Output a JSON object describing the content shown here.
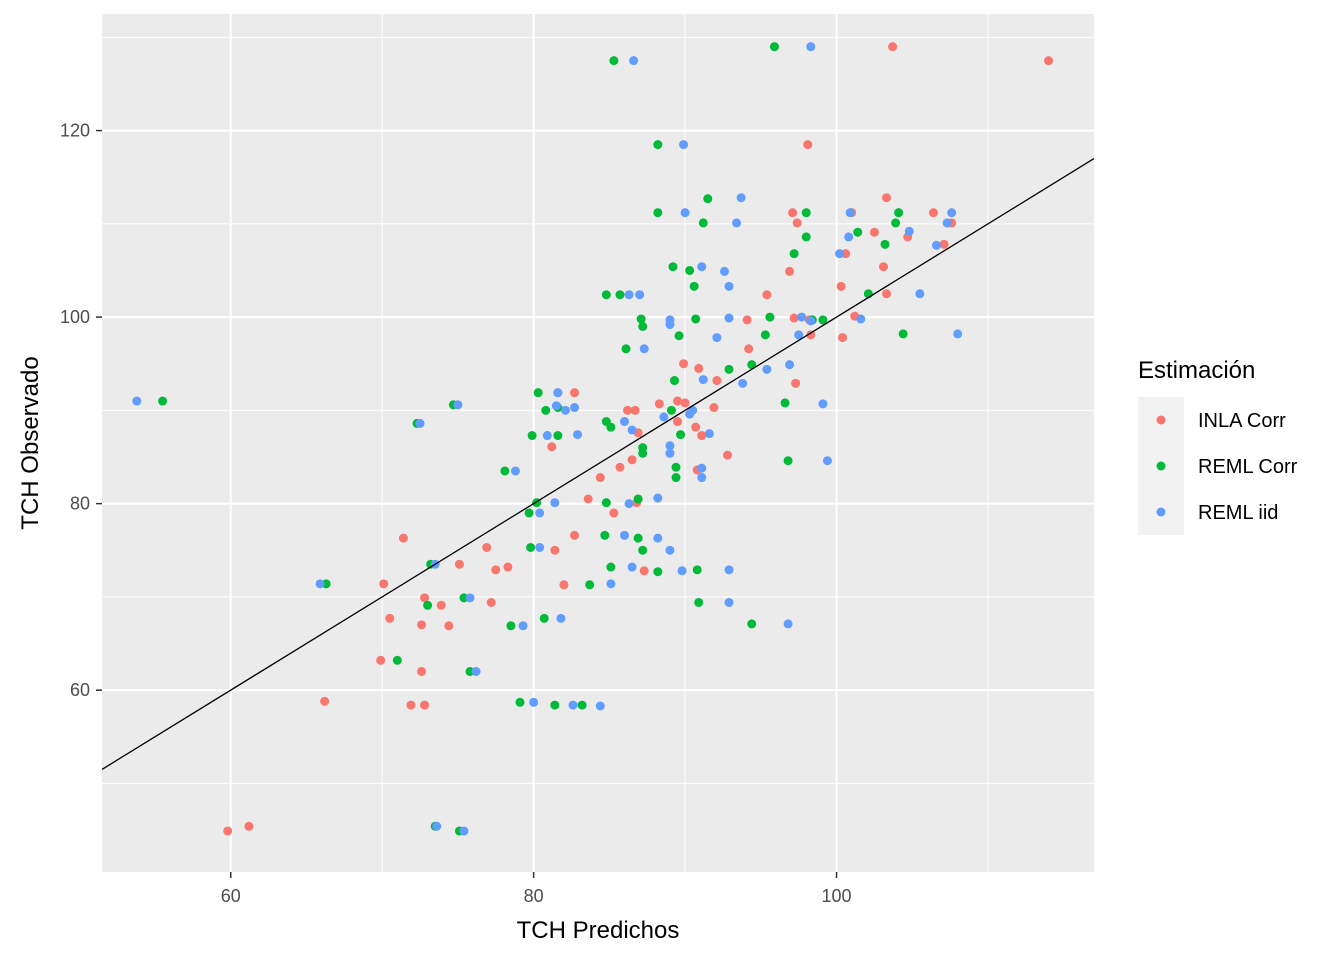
{
  "chart_data": {
    "type": "scatter",
    "xlabel": "TCH Predichos",
    "ylabel": "TCH Observado",
    "xlim": [
      51.5,
      117
    ],
    "ylim": [
      40.5,
      132.5
    ],
    "x_ticks": [
      60,
      80,
      100
    ],
    "y_ticks": [
      60,
      80,
      100,
      120
    ],
    "grid": true,
    "legend_title": "Estimación",
    "legend_position": "right",
    "reference_line": {
      "slope": 1,
      "intercept": 0,
      "color": "#000000"
    },
    "series": [
      {
        "name": "INLA Corr",
        "color": "#F8766D",
        "points": [
          [
            114,
            127.5
          ],
          [
            103.7,
            129
          ],
          [
            98.1,
            118.5
          ],
          [
            97.1,
            111.2
          ],
          [
            101,
            111.2
          ],
          [
            103.3,
            112.8
          ],
          [
            106.4,
            111.2
          ],
          [
            97.4,
            110.1
          ],
          [
            102.5,
            109.1
          ],
          [
            104.7,
            108.6
          ],
          [
            107.1,
            107.8
          ],
          [
            107.6,
            110.1
          ],
          [
            100.6,
            106.8
          ],
          [
            103.1,
            105.4
          ],
          [
            96.9,
            104.9
          ],
          [
            100.3,
            103.3
          ],
          [
            95.4,
            102.4
          ],
          [
            103.3,
            102.5
          ],
          [
            101.2,
            100.1
          ],
          [
            97.2,
            99.9
          ],
          [
            94.1,
            99.7
          ],
          [
            98.2,
            99.7
          ],
          [
            98.3,
            98.1
          ],
          [
            100.4,
            97.8
          ],
          [
            94.2,
            96.6
          ],
          [
            89.9,
            95
          ],
          [
            90.9,
            94.5
          ],
          [
            92.1,
            93.2
          ],
          [
            97.3,
            92.9
          ],
          [
            81.6,
            91.9
          ],
          [
            82.7,
            91.9
          ],
          [
            89.5,
            91
          ],
          [
            90,
            90.8
          ],
          [
            88.3,
            90.7
          ],
          [
            86.2,
            90
          ],
          [
            86.7,
            90
          ],
          [
            91.9,
            90.3
          ],
          [
            89.5,
            88.8
          ],
          [
            90.7,
            88.2
          ],
          [
            91.1,
            87.3
          ],
          [
            86.9,
            87.6
          ],
          [
            81.2,
            86.1
          ],
          [
            92.8,
            85.2
          ],
          [
            86.5,
            84.7
          ],
          [
            85.7,
            83.9
          ],
          [
            90.8,
            83.6
          ],
          [
            84.4,
            82.8
          ],
          [
            83.6,
            80.5
          ],
          [
            86.8,
            80.1
          ],
          [
            85.3,
            79
          ],
          [
            82.7,
            76.6
          ],
          [
            76.9,
            75.3
          ],
          [
            81.4,
            75
          ],
          [
            75.1,
            73.5
          ],
          [
            78.3,
            73.2
          ],
          [
            77.5,
            72.9
          ],
          [
            87.3,
            72.8
          ],
          [
            82,
            71.3
          ],
          [
            70.1,
            71.4
          ],
          [
            72.8,
            69.9
          ],
          [
            73.9,
            69.1
          ],
          [
            77.2,
            69.4
          ],
          [
            70.5,
            67.7
          ],
          [
            72.6,
            67
          ],
          [
            74.4,
            66.9
          ],
          [
            69.9,
            63.2
          ],
          [
            72.6,
            62
          ],
          [
            66.2,
            58.8
          ],
          [
            71.9,
            58.4
          ],
          [
            72.8,
            58.4
          ],
          [
            59.8,
            44.9
          ],
          [
            61.2,
            45.4
          ],
          [
            71.4,
            76.3
          ]
        ]
      },
      {
        "name": "REML Corr",
        "color": "#00BA38",
        "points": [
          [
            85.3,
            127.5
          ],
          [
            95.9,
            129
          ],
          [
            88.2,
            118.5
          ],
          [
            91.5,
            112.7
          ],
          [
            88.2,
            111.2
          ],
          [
            98,
            111.2
          ],
          [
            104.1,
            111.2
          ],
          [
            91.2,
            110.1
          ],
          [
            103.9,
            110.1
          ],
          [
            101.4,
            109.1
          ],
          [
            98,
            108.6
          ],
          [
            97.2,
            106.8
          ],
          [
            103.2,
            107.8
          ],
          [
            89.2,
            105.4
          ],
          [
            90.3,
            105
          ],
          [
            90.6,
            103.3
          ],
          [
            84.8,
            102.4
          ],
          [
            85.7,
            102.4
          ],
          [
            102.1,
            102.5
          ],
          [
            87.1,
            99.8
          ],
          [
            90.7,
            99.8
          ],
          [
            95.6,
            100
          ],
          [
            98.4,
            99.7
          ],
          [
            99.1,
            99.7
          ],
          [
            87.2,
            99
          ],
          [
            89.6,
            98
          ],
          [
            95.3,
            98.1
          ],
          [
            104.4,
            98.2
          ],
          [
            86.1,
            96.6
          ],
          [
            94.4,
            94.9
          ],
          [
            92.9,
            94.4
          ],
          [
            89.3,
            93.2
          ],
          [
            80.3,
            91.9
          ],
          [
            80.8,
            90
          ],
          [
            81.6,
            90.3
          ],
          [
            96.6,
            90.8
          ],
          [
            74.7,
            90.6
          ],
          [
            89.1,
            90
          ],
          [
            72.3,
            88.6
          ],
          [
            84.8,
            88.8
          ],
          [
            85.1,
            88.2
          ],
          [
            79.9,
            87.3
          ],
          [
            81.6,
            87.3
          ],
          [
            89.7,
            87.4
          ],
          [
            87.2,
            86
          ],
          [
            87.2,
            85.4
          ],
          [
            96.8,
            84.6
          ],
          [
            89.4,
            83.9
          ],
          [
            89.4,
            82.8
          ],
          [
            78.1,
            83.5
          ],
          [
            80.2,
            80.1
          ],
          [
            84.8,
            80.1
          ],
          [
            86.9,
            80.5
          ],
          [
            79.7,
            79
          ],
          [
            84.7,
            76.6
          ],
          [
            86.9,
            76.3
          ],
          [
            87.2,
            75
          ],
          [
            79.8,
            75.3
          ],
          [
            73.2,
            73.5
          ],
          [
            85.1,
            73.2
          ],
          [
            88.2,
            72.7
          ],
          [
            90.8,
            72.9
          ],
          [
            66.3,
            71.4
          ],
          [
            83.7,
            71.3
          ],
          [
            75.4,
            69.9
          ],
          [
            73,
            69.1
          ],
          [
            90.9,
            69.4
          ],
          [
            78.5,
            66.9
          ],
          [
            80.7,
            67.7
          ],
          [
            94.4,
            67.1
          ],
          [
            71,
            63.2
          ],
          [
            75.8,
            62
          ],
          [
            79.1,
            58.7
          ],
          [
            81.4,
            58.4
          ],
          [
            83.2,
            58.4
          ],
          [
            55.5,
            91
          ],
          [
            73.5,
            45.4
          ],
          [
            75.1,
            44.9
          ]
        ]
      },
      {
        "name": "REML iid",
        "color": "#619CFF",
        "points": [
          [
            86.6,
            127.5
          ],
          [
            98.3,
            129
          ],
          [
            89.9,
            118.5
          ],
          [
            93.7,
            112.8
          ],
          [
            90,
            111.2
          ],
          [
            100.9,
            111.2
          ],
          [
            107.6,
            111.2
          ],
          [
            93.4,
            110.1
          ],
          [
            107.3,
            110.1
          ],
          [
            104.8,
            109.2
          ],
          [
            100.8,
            108.6
          ],
          [
            106.6,
            107.7
          ],
          [
            100.2,
            106.8
          ],
          [
            91.1,
            105.4
          ],
          [
            92.6,
            104.9
          ],
          [
            92.9,
            103.3
          ],
          [
            86.3,
            102.4
          ],
          [
            87,
            102.4
          ],
          [
            105.5,
            102.5
          ],
          [
            92.9,
            99.9
          ],
          [
            89,
            99.7
          ],
          [
            97.7,
            100
          ],
          [
            101.6,
            99.8
          ],
          [
            89,
            99.2
          ],
          [
            98.3,
            99.6
          ],
          [
            92.1,
            97.8
          ],
          [
            97.5,
            98.1
          ],
          [
            108,
            98.2
          ],
          [
            87.3,
            96.6
          ],
          [
            96.9,
            94.9
          ],
          [
            95.4,
            94.4
          ],
          [
            91.2,
            93.3
          ],
          [
            93.8,
            92.9
          ],
          [
            81.6,
            91.9
          ],
          [
            82.7,
            90.3
          ],
          [
            81.5,
            90.5
          ],
          [
            82.1,
            90
          ],
          [
            75,
            90.6
          ],
          [
            90.5,
            90
          ],
          [
            99.1,
            90.7
          ],
          [
            72.5,
            88.6
          ],
          [
            86,
            88.8
          ],
          [
            86.5,
            87.9
          ],
          [
            91.6,
            87.5
          ],
          [
            80.9,
            87.3
          ],
          [
            82.9,
            87.4
          ],
          [
            89,
            86.2
          ],
          [
            89,
            85.4
          ],
          [
            99.4,
            84.6
          ],
          [
            91.1,
            83.8
          ],
          [
            91.1,
            82.8
          ],
          [
            78.8,
            83.5
          ],
          [
            81.4,
            80.1
          ],
          [
            86.3,
            80
          ],
          [
            88.2,
            80.6
          ],
          [
            80.4,
            79
          ],
          [
            86,
            76.6
          ],
          [
            88.2,
            76.3
          ],
          [
            89,
            75
          ],
          [
            80.4,
            75.3
          ],
          [
            73.5,
            73.5
          ],
          [
            86.5,
            73.2
          ],
          [
            89.8,
            72.8
          ],
          [
            92.9,
            72.9
          ],
          [
            65.9,
            71.4
          ],
          [
            85.1,
            71.4
          ],
          [
            75.8,
            69.9
          ],
          [
            79.3,
            66.9
          ],
          [
            81.8,
            67.7
          ],
          [
            92.9,
            69.4
          ],
          [
            96.8,
            67.1
          ],
          [
            76.2,
            62
          ],
          [
            80,
            58.7
          ],
          [
            82.6,
            58.4
          ],
          [
            84.4,
            58.3
          ],
          [
            53.8,
            91
          ],
          [
            73.6,
            45.4
          ],
          [
            75.4,
            44.9
          ],
          [
            88.6,
            89.3
          ],
          [
            90.3,
            89.6
          ]
        ]
      }
    ]
  }
}
